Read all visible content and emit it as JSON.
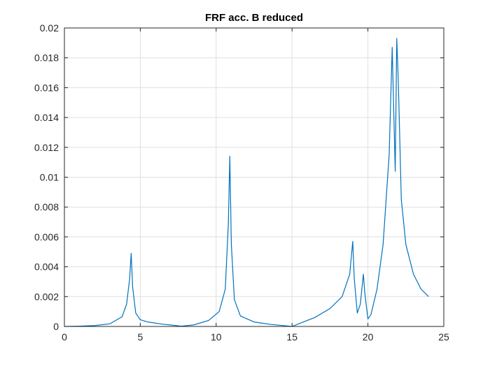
{
  "chart_data": {
    "type": "line",
    "title": "FRF acc. B reduced",
    "xlabel": "",
    "ylabel": "",
    "xlim": [
      0,
      25
    ],
    "ylim": [
      0,
      0.02
    ],
    "grid": true,
    "line_color": "#0072BD",
    "x_ticks": [
      "0",
      "5",
      "10",
      "15",
      "20",
      "25"
    ],
    "y_ticks": [
      "0",
      "0.002",
      "0.004",
      "0.006",
      "0.008",
      "0.01",
      "0.012",
      "0.014",
      "0.016",
      "0.018",
      "0.02"
    ],
    "series": [
      {
        "x": [
          0,
          1,
          2,
          3,
          3.8,
          4.1,
          4.3,
          4.4,
          4.5,
          4.7,
          5.0,
          5.5,
          6.5,
          7.7,
          8.5,
          9.5,
          10.2,
          10.6,
          10.8,
          10.9,
          11.0,
          11.2,
          11.6,
          12.5,
          13.5,
          14.5,
          15.0,
          15.5,
          16.5,
          17.5,
          18.3,
          18.8,
          19.0,
          19.1,
          19.3,
          19.5,
          19.7,
          19.8,
          20.0,
          20.2,
          20.6,
          21.0,
          21.4,
          21.6,
          21.7,
          21.8,
          21.9,
          22.0,
          22.2,
          22.5,
          23.0,
          23.5,
          24.0
        ],
        "y": [
          0,
          2e-05,
          6e-05,
          0.00018,
          0.00065,
          0.0015,
          0.0032,
          0.0049,
          0.0026,
          0.0009,
          0.00045,
          0.0003,
          0.00015,
          2e-05,
          0.0001,
          0.0004,
          0.001,
          0.0025,
          0.0068,
          0.0114,
          0.0055,
          0.0018,
          0.0007,
          0.0003,
          0.00015,
          5e-05,
          0,
          0.0002,
          0.0006,
          0.0012,
          0.002,
          0.0035,
          0.0057,
          0.0032,
          0.0009,
          0.0015,
          0.0035,
          0.0022,
          0.0005,
          0.0008,
          0.0025,
          0.0055,
          0.0115,
          0.0187,
          0.0145,
          0.0104,
          0.0193,
          0.0165,
          0.0085,
          0.0055,
          0.0035,
          0.0025,
          0.002
        ]
      }
    ]
  }
}
